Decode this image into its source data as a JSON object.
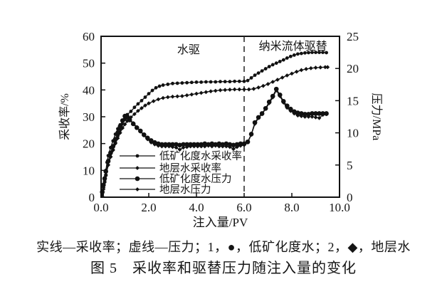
{
  "figure": {
    "caption_line1": "实线—采收率；虚线—压力；1，●，低矿化度水；2，◆，地层水",
    "caption_line2": "图 5　采收率和驱替压力随注入量的变化"
  },
  "chart_data": {
    "type": "line",
    "title": "图 5 采收率和驱替压力随注入量的变化",
    "xlabel": "注入量/PV",
    "ylabel_left": "采收率/%",
    "ylabel_right": "压力/MPa",
    "xlim": [
      0.0,
      10.0
    ],
    "xticks": [
      0,
      2,
      4,
      6,
      8,
      10
    ],
    "xtick_labels": [
      "0.0",
      "2.0",
      "4.0",
      "6.0",
      "8.0",
      "10.0"
    ],
    "ylim_left": [
      0,
      60
    ],
    "yticks_left": [
      0,
      10,
      20,
      30,
      40,
      50,
      60
    ],
    "ylim_right": [
      0,
      25
    ],
    "yticks_right": [
      0,
      5,
      10,
      15,
      20,
      25
    ],
    "grid": false,
    "legend_position": "inside lower-left",
    "line_color": "#111111",
    "stage_divider_x": 6.0,
    "stage_labels": [
      {
        "text": "水驱",
        "x": 3.67,
        "y": 55.0
      },
      {
        "text": "纳米流体驱替",
        "x": 8.05,
        "y": 56.3
      }
    ],
    "series": [
      {
        "name": "低矿化度水采收率",
        "axis": "left",
        "unit": "%",
        "marker": "circle-small",
        "points": [
          [
            0.05,
            1
          ],
          [
            0.1,
            4
          ],
          [
            0.15,
            7
          ],
          [
            0.2,
            10
          ],
          [
            0.25,
            13
          ],
          [
            0.3,
            15.5
          ],
          [
            0.4,
            18.5
          ],
          [
            0.5,
            21
          ],
          [
            0.6,
            23.5
          ],
          [
            0.7,
            25.5
          ],
          [
            0.8,
            27
          ],
          [
            0.9,
            28.3
          ],
          [
            1.0,
            29.5
          ],
          [
            1.1,
            30.8
          ],
          [
            1.25,
            32
          ],
          [
            1.4,
            33.5
          ],
          [
            1.55,
            34.8
          ],
          [
            1.7,
            36
          ],
          [
            1.85,
            37.3
          ],
          [
            2.0,
            38.6
          ],
          [
            2.15,
            39.8
          ],
          [
            2.3,
            40.8
          ],
          [
            2.45,
            41.4
          ],
          [
            2.6,
            41.8
          ],
          [
            2.8,
            42.1
          ],
          [
            3.0,
            42.4
          ],
          [
            3.2,
            42.5
          ],
          [
            3.4,
            42.6
          ],
          [
            3.6,
            42.7
          ],
          [
            3.8,
            42.8
          ],
          [
            4.0,
            42.9
          ],
          [
            4.2,
            42.9
          ],
          [
            4.4,
            43
          ],
          [
            4.6,
            43
          ],
          [
            4.8,
            43
          ],
          [
            5.0,
            43.1
          ],
          [
            5.2,
            43.1
          ],
          [
            5.4,
            43.1
          ],
          [
            5.6,
            43.2
          ],
          [
            5.8,
            43.2
          ],
          [
            6.0,
            43.2
          ],
          [
            6.15,
            43.5
          ],
          [
            6.3,
            44.5
          ],
          [
            6.45,
            45.5
          ],
          [
            6.6,
            46.3
          ],
          [
            6.75,
            47.1
          ],
          [
            6.9,
            47.9
          ],
          [
            7.05,
            48.7
          ],
          [
            7.2,
            49.4
          ],
          [
            7.35,
            50
          ],
          [
            7.5,
            50.6
          ],
          [
            7.65,
            51.2
          ],
          [
            7.8,
            51.9
          ],
          [
            7.95,
            52.5
          ],
          [
            8.1,
            53
          ],
          [
            8.25,
            53.4
          ],
          [
            8.4,
            53.6
          ],
          [
            8.55,
            53.8
          ],
          [
            8.7,
            53.9
          ],
          [
            8.85,
            54
          ],
          [
            9.0,
            54
          ],
          [
            9.15,
            54
          ],
          [
            9.3,
            54
          ],
          [
            9.45,
            53.9
          ]
        ]
      },
      {
        "name": "地层水采收率",
        "axis": "left",
        "unit": "%",
        "marker": "diamond",
        "points": [
          [
            0.05,
            0.5
          ],
          [
            0.1,
            3
          ],
          [
            0.15,
            5.5
          ],
          [
            0.2,
            8
          ],
          [
            0.3,
            12
          ],
          [
            0.4,
            15
          ],
          [
            0.5,
            17.5
          ],
          [
            0.6,
            20
          ],
          [
            0.7,
            22
          ],
          [
            0.8,
            24
          ],
          [
            0.9,
            25.8
          ],
          [
            1.0,
            27.2
          ],
          [
            1.1,
            28.4
          ],
          [
            1.25,
            29.8
          ],
          [
            1.4,
            31
          ],
          [
            1.55,
            32.2
          ],
          [
            1.7,
            33.2
          ],
          [
            1.85,
            34.2
          ],
          [
            2.0,
            35
          ],
          [
            2.2,
            35.8
          ],
          [
            2.4,
            36.5
          ],
          [
            2.6,
            37
          ],
          [
            2.8,
            37.3
          ],
          [
            3.0,
            37.5
          ],
          [
            3.2,
            37.6
          ],
          [
            3.4,
            37.7
          ],
          [
            3.6,
            38
          ],
          [
            3.8,
            38.3
          ],
          [
            4.0,
            38.6
          ],
          [
            4.2,
            38.9
          ],
          [
            4.4,
            39.2
          ],
          [
            4.6,
            39.5
          ],
          [
            4.8,
            39.7
          ],
          [
            5.0,
            39.9
          ],
          [
            5.2,
            40
          ],
          [
            5.4,
            40.1
          ],
          [
            5.6,
            40.2
          ],
          [
            5.8,
            40.2
          ],
          [
            6.0,
            40.2
          ],
          [
            6.2,
            40.2
          ],
          [
            6.4,
            40.4
          ],
          [
            6.6,
            40.9
          ],
          [
            6.8,
            41.5
          ],
          [
            7.0,
            42.2
          ],
          [
            7.2,
            43
          ],
          [
            7.4,
            43.8
          ],
          [
            7.6,
            44.6
          ],
          [
            7.8,
            45.4
          ],
          [
            8.0,
            46.1
          ],
          [
            8.2,
            46.8
          ],
          [
            8.4,
            47.4
          ],
          [
            8.6,
            47.8
          ],
          [
            8.8,
            48.1
          ],
          [
            9.0,
            48.3
          ],
          [
            9.2,
            48.4
          ],
          [
            9.4,
            48.5
          ],
          [
            9.5,
            48.5
          ]
        ]
      },
      {
        "name": "低矿化度水压力",
        "axis": "right",
        "unit": "MPa",
        "marker": "circle-large",
        "points": [
          [
            0.05,
            0.8
          ],
          [
            0.1,
            1.9
          ],
          [
            0.15,
            2.9
          ],
          [
            0.2,
            4.0
          ],
          [
            0.3,
            5.6
          ],
          [
            0.4,
            6.9
          ],
          [
            0.5,
            7.9
          ],
          [
            0.6,
            9.0
          ],
          [
            0.7,
            10.0
          ],
          [
            0.8,
            11.0
          ],
          [
            0.9,
            11.9
          ],
          [
            1.0,
            12.6
          ],
          [
            1.1,
            12.5
          ],
          [
            1.2,
            12.0
          ],
          [
            1.35,
            11.4
          ],
          [
            1.5,
            10.8
          ],
          [
            1.65,
            10.3
          ],
          [
            1.8,
            9.7
          ],
          [
            1.95,
            9.2
          ],
          [
            2.1,
            8.8
          ],
          [
            2.25,
            8.5
          ],
          [
            2.4,
            8.3
          ],
          [
            2.55,
            8.2
          ],
          [
            2.7,
            8.2
          ],
          [
            2.85,
            8.2
          ],
          [
            3.0,
            8.2
          ],
          [
            3.15,
            8.2
          ],
          [
            3.3,
            8.1
          ],
          [
            3.45,
            8.2
          ],
          [
            3.6,
            8.2
          ],
          [
            3.75,
            8.2
          ],
          [
            3.9,
            8.2
          ],
          [
            4.05,
            8.2
          ],
          [
            4.2,
            8.2
          ],
          [
            4.35,
            8.3
          ],
          [
            4.5,
            8.2
          ],
          [
            4.65,
            8.3
          ],
          [
            4.8,
            8.2
          ],
          [
            4.95,
            8.3
          ],
          [
            5.1,
            8.2
          ],
          [
            5.25,
            8.3
          ],
          [
            5.4,
            8.2
          ],
          [
            5.55,
            8.1
          ],
          [
            5.7,
            8.2
          ],
          [
            5.85,
            8.3
          ],
          [
            6.0,
            8.3
          ],
          [
            6.15,
            8.6
          ],
          [
            6.3,
            9.8
          ],
          [
            6.45,
            11.6
          ],
          [
            6.6,
            12.4
          ],
          [
            6.75,
            13.0
          ],
          [
            6.9,
            13.8
          ],
          [
            7.05,
            14.8
          ],
          [
            7.2,
            15.7
          ],
          [
            7.35,
            16.8
          ],
          [
            7.5,
            15.9
          ],
          [
            7.65,
            14.9
          ],
          [
            7.8,
            14.2
          ],
          [
            7.95,
            13.7
          ],
          [
            8.1,
            13.3
          ],
          [
            8.25,
            13.1
          ],
          [
            8.4,
            13.0
          ],
          [
            8.55,
            12.9
          ],
          [
            8.7,
            12.9
          ],
          [
            8.85,
            13.0
          ],
          [
            9.0,
            13.0
          ],
          [
            9.15,
            13.0
          ],
          [
            9.3,
            13.0
          ],
          [
            9.45,
            13.0
          ]
        ]
      },
      {
        "name": "地层水压力",
        "axis": "right",
        "unit": "MPa",
        "marker": "diamond",
        "points": [
          [
            0.05,
            0.6
          ],
          [
            0.1,
            1.5
          ],
          [
            0.15,
            2.5
          ],
          [
            0.2,
            3.5
          ],
          [
            0.3,
            5.0
          ],
          [
            0.4,
            6.3
          ],
          [
            0.5,
            7.4
          ],
          [
            0.6,
            8.5
          ],
          [
            0.7,
            9.5
          ],
          [
            0.8,
            10.5
          ],
          [
            0.9,
            11.4
          ],
          [
            1.0,
            12.1
          ],
          [
            1.1,
            12.4
          ],
          [
            1.2,
            12.1
          ],
          [
            1.35,
            11.5
          ],
          [
            1.5,
            10.9
          ],
          [
            1.65,
            10.2
          ],
          [
            1.8,
            9.6
          ],
          [
            1.95,
            9.0
          ],
          [
            2.1,
            8.5
          ],
          [
            2.25,
            8.2
          ],
          [
            2.4,
            8.0
          ],
          [
            2.55,
            7.9
          ],
          [
            2.7,
            7.9
          ],
          [
            2.85,
            7.9
          ],
          [
            3.0,
            7.8
          ],
          [
            3.15,
            7.7
          ],
          [
            3.3,
            7.4
          ],
          [
            3.45,
            7.7
          ],
          [
            3.6,
            7.8
          ],
          [
            3.75,
            7.9
          ],
          [
            3.9,
            7.9
          ],
          [
            4.05,
            7.9
          ],
          [
            4.2,
            7.9
          ],
          [
            4.35,
            7.9
          ],
          [
            4.5,
            8.0
          ],
          [
            4.65,
            7.9
          ],
          [
            4.8,
            8.0
          ],
          [
            4.95,
            7.9
          ],
          [
            5.1,
            7.9
          ],
          [
            5.25,
            7.9
          ],
          [
            5.4,
            7.8
          ],
          [
            5.55,
            7.5
          ],
          [
            5.7,
            7.8
          ],
          [
            5.85,
            8.0
          ],
          [
            6.0,
            8.1
          ],
          [
            6.15,
            8.5
          ],
          [
            6.3,
            9.7
          ],
          [
            6.45,
            11.4
          ],
          [
            6.6,
            12.3
          ],
          [
            6.75,
            12.9
          ],
          [
            6.9,
            13.7
          ],
          [
            7.05,
            14.6
          ],
          [
            7.2,
            15.5
          ],
          [
            7.35,
            16.6
          ],
          [
            7.5,
            15.7
          ],
          [
            7.65,
            14.7
          ],
          [
            7.8,
            13.9
          ],
          [
            7.95,
            13.4
          ],
          [
            8.1,
            13.0
          ],
          [
            8.25,
            12.7
          ],
          [
            8.4,
            12.6
          ],
          [
            8.55,
            12.5
          ],
          [
            8.7,
            12.5
          ],
          [
            8.85,
            12.5
          ],
          [
            9.0,
            12.4
          ],
          [
            9.15,
            12.3
          ],
          [
            9.3,
            12.8
          ],
          [
            9.45,
            12.9
          ]
        ]
      }
    ]
  }
}
